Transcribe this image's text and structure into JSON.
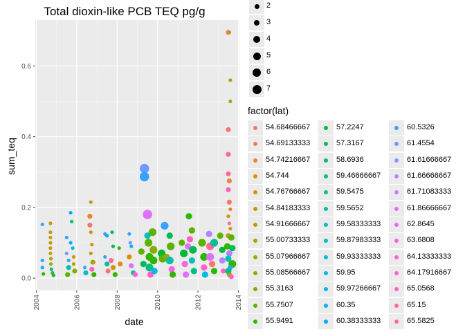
{
  "chart_data": {
    "type": "scatter",
    "title": "Total dioxin-like PCB TEQ pg/g",
    "xlabel": "date",
    "ylabel": "sum_teq",
    "xlim": [
      2003.95,
      2014.05
    ],
    "ylim": [
      -0.035,
      0.73
    ],
    "x_ticks": [
      2004,
      2006,
      2008,
      2010,
      2012,
      2014
    ],
    "y_ticks": [
      "0.0",
      "0.2",
      "0.4",
      "0.6"
    ],
    "y_tick_values": [
      0,
      0.2,
      0.4,
      0.6
    ],
    "grid": true,
    "size_legend": {
      "title": "",
      "values": [
        "2",
        "3",
        "4",
        "5",
        "6",
        "7"
      ]
    },
    "color_legend": {
      "title": "factor(lat)",
      "entries": [
        {
          "label": "54.68466667",
          "color": "#F8766D"
        },
        {
          "label": "54.69133333",
          "color": "#F17E4F"
        },
        {
          "label": "54.74216667",
          "color": "#E8852B"
        },
        {
          "label": "54.744",
          "color": "#DE8C00"
        },
        {
          "label": "54.76766667",
          "color": "#D49200"
        },
        {
          "label": "54.84183333",
          "color": "#C89800"
        },
        {
          "label": "54.91666667",
          "color": "#BB9D00"
        },
        {
          "label": "55.00733333",
          "color": "#ADA200"
        },
        {
          "label": "55.07966667",
          "color": "#9DA700"
        },
        {
          "label": "55.08566667",
          "color": "#8BAB00"
        },
        {
          "label": "55.3163",
          "color": "#76AF00"
        },
        {
          "label": "55.7507",
          "color": "#5BB300"
        },
        {
          "label": "55.9491",
          "color": "#2FB600"
        },
        {
          "label": "57.2247",
          "color": "#00B935"
        },
        {
          "label": "57.3167",
          "color": "#00BB55"
        },
        {
          "label": "58.6936",
          "color": "#00BD6D"
        },
        {
          "label": "59.46666667",
          "color": "#00BE83"
        },
        {
          "label": "59.5475",
          "color": "#00C096"
        },
        {
          "label": "59.5652",
          "color": "#00C0A8"
        },
        {
          "label": "59.58333333",
          "color": "#00C0B9"
        },
        {
          "label": "59.87983333",
          "color": "#00BFC8"
        },
        {
          "label": "59.93333333",
          "color": "#00BDD6"
        },
        {
          "label": "59.95",
          "color": "#00BAE2"
        },
        {
          "label": "59.97266667",
          "color": "#00B6EC"
        },
        {
          "label": "60.35",
          "color": "#00B0F6"
        },
        {
          "label": "60.38333333",
          "color": "#00A9FF"
        },
        {
          "label": "60.5326",
          "color": "#35A2FF"
        },
        {
          "label": "61.4554",
          "color": "#6E99FF"
        },
        {
          "label": "61.61666667",
          "color": "#9590FF"
        },
        {
          "label": "61.66666667",
          "color": "#B385FF"
        },
        {
          "label": "61.71083333",
          "color": "#CB7BFF"
        },
        {
          "label": "61.86666667",
          "color": "#DE71F9"
        },
        {
          "label": "62.8645",
          "color": "#EC69EF"
        },
        {
          "label": "63.6808",
          "color": "#F564E3"
        },
        {
          "label": "64.13333333",
          "color": "#FB61D6"
        },
        {
          "label": "64.17916667",
          "color": "#FF61C7"
        },
        {
          "label": "65.0568",
          "color": "#FF63B6"
        },
        {
          "label": "65.15",
          "color": "#FF67A4"
        },
        {
          "label": "65.5825",
          "color": "#FF6C90"
        }
      ]
    },
    "points": [
      {
        "x": 2004.3,
        "y": 0.152,
        "size": 2,
        "color": "#35A2FF"
      },
      {
        "x": 2004.3,
        "y": 0.05,
        "size": 2,
        "color": "#35A2FF"
      },
      {
        "x": 2004.3,
        "y": 0.03,
        "size": 2,
        "color": "#00B6EC"
      },
      {
        "x": 2004.35,
        "y": 0.012,
        "size": 2,
        "color": "#2FB600"
      },
      {
        "x": 2004.7,
        "y": 0.155,
        "size": 2,
        "color": "#BB9D00"
      },
      {
        "x": 2004.7,
        "y": 0.13,
        "size": 2,
        "color": "#C89800"
      },
      {
        "x": 2004.7,
        "y": 0.115,
        "size": 2,
        "color": "#C89800"
      },
      {
        "x": 2004.7,
        "y": 0.1,
        "size": 2,
        "color": "#BB9D00"
      },
      {
        "x": 2004.7,
        "y": 0.085,
        "size": 2,
        "color": "#D49200"
      },
      {
        "x": 2004.7,
        "y": 0.07,
        "size": 2,
        "color": "#BB9D00"
      },
      {
        "x": 2004.72,
        "y": 0.055,
        "size": 2,
        "color": "#ADA200"
      },
      {
        "x": 2004.72,
        "y": 0.04,
        "size": 2,
        "color": "#9DA700"
      },
      {
        "x": 2004.75,
        "y": 0.025,
        "size": 2,
        "color": "#00C096"
      },
      {
        "x": 2004.8,
        "y": 0.015,
        "size": 2,
        "color": "#5BB300"
      },
      {
        "x": 2004.85,
        "y": 0.008,
        "size": 2,
        "color": "#00BB55"
      },
      {
        "x": 2005.5,
        "y": 0.115,
        "size": 2,
        "color": "#35A2FF"
      },
      {
        "x": 2005.5,
        "y": 0.07,
        "size": 2,
        "color": "#6E99FF"
      },
      {
        "x": 2005.6,
        "y": 0.05,
        "size": 2,
        "color": "#35A2FF"
      },
      {
        "x": 2005.7,
        "y": 0.185,
        "size": 2,
        "color": "#00A9FF"
      },
      {
        "x": 2005.75,
        "y": 0.16,
        "size": 2,
        "color": "#00BE83"
      },
      {
        "x": 2005.7,
        "y": 0.1,
        "size": 2,
        "color": "#00B0F6"
      },
      {
        "x": 2005.8,
        "y": 0.085,
        "size": 2,
        "color": "#00BAE2"
      },
      {
        "x": 2005.6,
        "y": 0.03,
        "size": 3,
        "color": "#00C0A8"
      },
      {
        "x": 2005.85,
        "y": 0.06,
        "size": 2,
        "color": "#C89800"
      },
      {
        "x": 2005.85,
        "y": 0.04,
        "size": 2,
        "color": "#BB9D00"
      },
      {
        "x": 2005.9,
        "y": 0.02,
        "size": 3,
        "color": "#8BAB00"
      },
      {
        "x": 2005.55,
        "y": 0.01,
        "size": 3,
        "color": "#5BB300"
      },
      {
        "x": 2006.4,
        "y": 0.03,
        "size": 2,
        "color": "#35A2FF"
      },
      {
        "x": 2006.45,
        "y": 0.015,
        "size": 3,
        "color": "#00C0B9"
      },
      {
        "x": 2006.7,
        "y": 0.215,
        "size": 2,
        "color": "#C89800"
      },
      {
        "x": 2006.65,
        "y": 0.175,
        "size": 3,
        "color": "#E8852B"
      },
      {
        "x": 2006.65,
        "y": 0.15,
        "size": 3,
        "color": "#F8766D"
      },
      {
        "x": 2006.7,
        "y": 0.13,
        "size": 2,
        "color": "#DE8C00"
      },
      {
        "x": 2006.75,
        "y": 0.095,
        "size": 2,
        "color": "#D49200"
      },
      {
        "x": 2006.7,
        "y": 0.07,
        "size": 2,
        "color": "#BB9D00"
      },
      {
        "x": 2006.8,
        "y": 0.045,
        "size": 3,
        "color": "#ADA200"
      },
      {
        "x": 2006.75,
        "y": 0.025,
        "size": 3,
        "color": "#FF63B6"
      },
      {
        "x": 2006.85,
        "y": 0.01,
        "size": 3,
        "color": "#2FB600"
      },
      {
        "x": 2007.4,
        "y": 0.125,
        "size": 2,
        "color": "#35A2FF"
      },
      {
        "x": 2007.5,
        "y": 0.12,
        "size": 2,
        "color": "#00A9FF"
      },
      {
        "x": 2007.4,
        "y": 0.06,
        "size": 2,
        "color": "#35A2FF"
      },
      {
        "x": 2007.5,
        "y": 0.04,
        "size": 3,
        "color": "#00C0A8"
      },
      {
        "x": 2007.55,
        "y": 0.02,
        "size": 3,
        "color": "#F8766D"
      },
      {
        "x": 2007.75,
        "y": 0.13,
        "size": 2,
        "color": "#00BD6D"
      },
      {
        "x": 2007.8,
        "y": 0.09,
        "size": 2,
        "color": "#00BB55"
      },
      {
        "x": 2007.7,
        "y": 0.05,
        "size": 3,
        "color": "#FF67A4"
      },
      {
        "x": 2007.8,
        "y": 0.03,
        "size": 3,
        "color": "#C89800"
      },
      {
        "x": 2007.9,
        "y": 0.01,
        "size": 3,
        "color": "#2FB600"
      },
      {
        "x": 2008.1,
        "y": 0.085,
        "size": 2,
        "color": "#2FB600"
      },
      {
        "x": 2008.15,
        "y": 0.04,
        "size": 3,
        "color": "#E8852B"
      },
      {
        "x": 2008.6,
        "y": 0.125,
        "size": 2,
        "color": "#35A2FF"
      },
      {
        "x": 2008.65,
        "y": 0.1,
        "size": 2,
        "color": "#6E99FF"
      },
      {
        "x": 2008.7,
        "y": 0.09,
        "size": 2,
        "color": "#00B6EC"
      },
      {
        "x": 2008.6,
        "y": 0.06,
        "size": 3,
        "color": "#DE8C00"
      },
      {
        "x": 2008.7,
        "y": 0.035,
        "size": 3,
        "color": "#DE71F9"
      },
      {
        "x": 2008.8,
        "y": 0.015,
        "size": 3,
        "color": "#00C096"
      },
      {
        "x": 2008.9,
        "y": 0.01,
        "size": 3,
        "color": "#FB61D6"
      },
      {
        "x": 2009.2,
        "y": 0.075,
        "size": 4,
        "color": "#5BB300"
      },
      {
        "x": 2009.3,
        "y": 0.04,
        "size": 4,
        "color": "#00BB55"
      },
      {
        "x": 2009.35,
        "y": 0.31,
        "size": 6,
        "color": "#6E99FF"
      },
      {
        "x": 2009.35,
        "y": 0.287,
        "size": 6,
        "color": "#35A2FF"
      },
      {
        "x": 2009.5,
        "y": 0.18,
        "size": 6,
        "color": "#DE71F9"
      },
      {
        "x": 2009.5,
        "y": 0.12,
        "size": 4,
        "color": "#00C0B9"
      },
      {
        "x": 2009.55,
        "y": 0.1,
        "size": 5,
        "color": "#5BB300"
      },
      {
        "x": 2009.6,
        "y": 0.06,
        "size": 5,
        "color": "#2FB600"
      },
      {
        "x": 2009.6,
        "y": 0.03,
        "size": 5,
        "color": "#00BE83"
      },
      {
        "x": 2009.65,
        "y": 0.01,
        "size": 4,
        "color": "#FF61C7"
      },
      {
        "x": 2009.75,
        "y": 0.13,
        "size": 5,
        "color": "#5BB300"
      },
      {
        "x": 2009.8,
        "y": 0.08,
        "size": 5,
        "color": "#8BAB00"
      },
      {
        "x": 2009.8,
        "y": 0.05,
        "size": 5,
        "color": "#2FB600"
      },
      {
        "x": 2009.85,
        "y": 0.02,
        "size": 4,
        "color": "#00BAE2"
      },
      {
        "x": 2010.2,
        "y": 0.07,
        "size": 5,
        "color": "#00B935"
      },
      {
        "x": 2010.25,
        "y": 0.055,
        "size": 5,
        "color": "#5BB300"
      },
      {
        "x": 2010.35,
        "y": 0.148,
        "size": 5,
        "color": "#35A2FF"
      },
      {
        "x": 2010.45,
        "y": 0.06,
        "size": 4,
        "color": "#9DA700"
      },
      {
        "x": 2010.6,
        "y": 0.12,
        "size": 4,
        "color": "#00BB55"
      },
      {
        "x": 2010.65,
        "y": 0.09,
        "size": 5,
        "color": "#5BB300"
      },
      {
        "x": 2010.6,
        "y": 0.05,
        "size": 5,
        "color": "#00C0A8"
      },
      {
        "x": 2010.7,
        "y": 0.025,
        "size": 4,
        "color": "#F564E3"
      },
      {
        "x": 2010.75,
        "y": 0.01,
        "size": 4,
        "color": "#2FB600"
      },
      {
        "x": 2011.2,
        "y": 0.1,
        "size": 4,
        "color": "#5BB300"
      },
      {
        "x": 2011.3,
        "y": 0.07,
        "size": 5,
        "color": "#00B935"
      },
      {
        "x": 2011.35,
        "y": 0.04,
        "size": 4,
        "color": "#F564E3"
      },
      {
        "x": 2011.4,
        "y": 0.01,
        "size": 4,
        "color": "#DE71F9"
      },
      {
        "x": 2011.5,
        "y": 0.09,
        "size": 4,
        "color": "#DE71F9"
      },
      {
        "x": 2011.55,
        "y": 0.175,
        "size": 4,
        "color": "#2FB600"
      },
      {
        "x": 2011.6,
        "y": 0.11,
        "size": 4,
        "color": "#FF61C7"
      },
      {
        "x": 2011.7,
        "y": 0.135,
        "size": 4,
        "color": "#5BB300"
      },
      {
        "x": 2011.75,
        "y": 0.08,
        "size": 5,
        "color": "#00BB55"
      },
      {
        "x": 2011.7,
        "y": 0.05,
        "size": 4,
        "color": "#00C0B9"
      },
      {
        "x": 2011.8,
        "y": 0.02,
        "size": 4,
        "color": "#00BE83"
      },
      {
        "x": 2012.2,
        "y": 0.1,
        "size": 5,
        "color": "#5BB300"
      },
      {
        "x": 2012.3,
        "y": 0.06,
        "size": 5,
        "color": "#2FB600"
      },
      {
        "x": 2012.3,
        "y": 0.03,
        "size": 4,
        "color": "#FF61C7"
      },
      {
        "x": 2012.35,
        "y": 0.01,
        "size": 4,
        "color": "#00BAE2"
      },
      {
        "x": 2012.55,
        "y": 0.125,
        "size": 4,
        "color": "#B385FF"
      },
      {
        "x": 2012.6,
        "y": 0.09,
        "size": 5,
        "color": "#FF67A4"
      },
      {
        "x": 2012.6,
        "y": 0.06,
        "size": 5,
        "color": "#DE71F9"
      },
      {
        "x": 2012.7,
        "y": 0.04,
        "size": 4,
        "color": "#F8766D"
      },
      {
        "x": 2012.8,
        "y": 0.1,
        "size": 5,
        "color": "#00C096"
      },
      {
        "x": 2012.8,
        "y": 0.02,
        "size": 4,
        "color": "#2FB600"
      },
      {
        "x": 2013.1,
        "y": 0.12,
        "size": 4,
        "color": "#5BB300"
      },
      {
        "x": 2013.2,
        "y": 0.08,
        "size": 4,
        "color": "#00B935"
      },
      {
        "x": 2013.2,
        "y": 0.05,
        "size": 4,
        "color": "#B385FF"
      },
      {
        "x": 2013.25,
        "y": 0.02,
        "size": 3,
        "color": "#FF61C7"
      },
      {
        "x": 2013.5,
        "y": 0.695,
        "size": 3,
        "color": "#F8766D"
      },
      {
        "x": 2013.55,
        "y": 0.695,
        "size": 2,
        "color": "#BB9D00"
      },
      {
        "x": 2013.6,
        "y": 0.56,
        "size": 2,
        "color": "#BB9D00"
      },
      {
        "x": 2013.6,
        "y": 0.5,
        "size": 2,
        "color": "#ADA200"
      },
      {
        "x": 2013.5,
        "y": 0.42,
        "size": 3,
        "color": "#F8766D"
      },
      {
        "x": 2013.5,
        "y": 0.35,
        "size": 3,
        "color": "#FF6C90"
      },
      {
        "x": 2013.5,
        "y": 0.295,
        "size": 3,
        "color": "#FF67A4"
      },
      {
        "x": 2013.55,
        "y": 0.275,
        "size": 3,
        "color": "#F17E4F"
      },
      {
        "x": 2013.5,
        "y": 0.25,
        "size": 3,
        "color": "#FF63B6"
      },
      {
        "x": 2013.55,
        "y": 0.215,
        "size": 3,
        "color": "#F8766D"
      },
      {
        "x": 2013.6,
        "y": 0.195,
        "size": 2,
        "color": "#E8852B"
      },
      {
        "x": 2013.5,
        "y": 0.175,
        "size": 2,
        "color": "#C89800"
      },
      {
        "x": 2013.55,
        "y": 0.155,
        "size": 2,
        "color": "#FF6C90"
      },
      {
        "x": 2013.6,
        "y": 0.14,
        "size": 2,
        "color": "#D49200"
      },
      {
        "x": 2013.5,
        "y": 0.12,
        "size": 3,
        "color": "#BB9D00"
      },
      {
        "x": 2013.65,
        "y": 0.115,
        "size": 4,
        "color": "#5BB300"
      },
      {
        "x": 2013.45,
        "y": 0.09,
        "size": 4,
        "color": "#2FB600"
      },
      {
        "x": 2013.7,
        "y": 0.085,
        "size": 4,
        "color": "#00BB55"
      },
      {
        "x": 2013.55,
        "y": 0.07,
        "size": 4,
        "color": "#B385FF"
      },
      {
        "x": 2013.5,
        "y": 0.055,
        "size": 4,
        "color": "#00C0B9"
      },
      {
        "x": 2013.7,
        "y": 0.04,
        "size": 5,
        "color": "#2FB600"
      },
      {
        "x": 2013.6,
        "y": 0.03,
        "size": 3,
        "color": "#35A2FF"
      },
      {
        "x": 2013.5,
        "y": 0.02,
        "size": 4,
        "color": "#00BE83"
      },
      {
        "x": 2013.55,
        "y": 0.01,
        "size": 3,
        "color": "#8BAB00"
      },
      {
        "x": 2013.65,
        "y": 0.004,
        "size": 3,
        "color": "#FF61C7"
      }
    ]
  }
}
